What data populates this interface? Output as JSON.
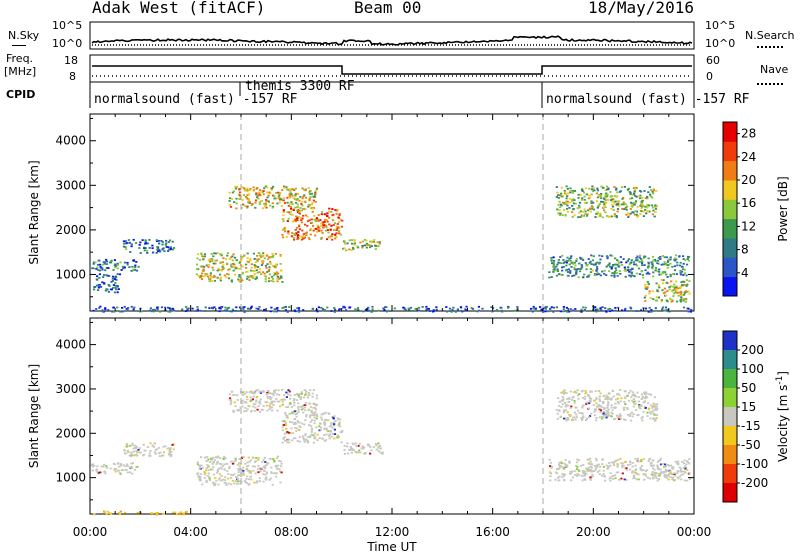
{
  "header": {
    "title": "Adak West (fitACF)",
    "beam": "Beam 00",
    "date": "18/May/2016"
  },
  "panels": {
    "nsky": {
      "label": "N.Sky",
      "ticks": [
        "10^5",
        "10^0"
      ],
      "right_label": "N.Search",
      "right_ticks": [
        "10^5",
        "10^0"
      ]
    },
    "freq": {
      "label_line1": "Freq.",
      "label_line2": "[MHz]",
      "ticks": [
        "18",
        "8"
      ],
      "right_label": "Nave",
      "right_ticks": [
        "60",
        "0"
      ]
    },
    "cpid": {
      "label": "CPID",
      "modes": [
        "normalsound (fast) -157 RF",
        "themis 3300 RF",
        "normalsound (fast) -157 RF"
      ]
    }
  },
  "chart_data": [
    {
      "type": "heatmap",
      "name": "power",
      "ylabel": "Slant Range [km]",
      "yticks": [
        "1000",
        "2000",
        "3000",
        "4000"
      ],
      "ylim": [
        180,
        4600
      ],
      "xlim": [
        0,
        24
      ],
      "colorbar": {
        "label": "Power [dB]",
        "ticks": [
          "4",
          "8",
          "12",
          "16",
          "20",
          "24",
          "28"
        ],
        "range": [
          0,
          30
        ],
        "colors": [
          "#0a14f0",
          "#2a56c8",
          "#2f7a84",
          "#3c9a4c",
          "#8cc83c",
          "#f0c81e",
          "#f07d14",
          "#f03c0a",
          "#e60000"
        ]
      },
      "mode_change_times": [
        6,
        18
      ],
      "echo_regions": [
        {
          "t": [
            0.0,
            1.9
          ],
          "range": [
            1100,
            1350
          ],
          "power": 8
        },
        {
          "t": [
            0.1,
            1.2
          ],
          "range": [
            600,
            1050
          ],
          "power": 6
        },
        {
          "t": [
            1.3,
            3.3
          ],
          "range": [
            1500,
            1800
          ],
          "power": 7
        },
        {
          "t": [
            4.2,
            7.6
          ],
          "range": [
            850,
            1500
          ],
          "power": 16
        },
        {
          "t": [
            5.5,
            9.0
          ],
          "range": [
            2500,
            3000
          ],
          "power": 18
        },
        {
          "t": [
            7.6,
            10.0
          ],
          "range": [
            1800,
            2500
          ],
          "power": 22
        },
        {
          "t": [
            10.0,
            11.6
          ],
          "range": [
            1550,
            1800
          ],
          "power": 15
        },
        {
          "t": [
            18.5,
            22.5
          ],
          "range": [
            2300,
            3000
          ],
          "power": 14
        },
        {
          "t": [
            18.2,
            23.8
          ],
          "range": [
            950,
            1450
          ],
          "power": 10
        },
        {
          "t": [
            22.0,
            23.8
          ],
          "range": [
            400,
            900
          ],
          "power": 16
        },
        {
          "t": [
            0.0,
            24.0
          ],
          "range": [
            180,
            300
          ],
          "power": 6
        }
      ]
    },
    {
      "type": "heatmap",
      "name": "velocity",
      "ylabel": "Slant Range [km]",
      "yticks": [
        "1000",
        "2000",
        "3000",
        "4000"
      ],
      "ylim": [
        180,
        4600
      ],
      "xlim": [
        0,
        24
      ],
      "xticks": [
        "00:00",
        "04:00",
        "08:00",
        "12:00",
        "16:00",
        "20:00",
        "00:00"
      ],
      "xlabel": "Time UT",
      "colorbar": {
        "label": "Velocity [m s",
        "label_sup": "-1",
        "label_end": "]",
        "ticks": [
          "200",
          "100",
          "50",
          "15",
          "-15",
          "-50",
          "-100",
          "-200"
        ],
        "colors": [
          "#1e32c8",
          "#2d8c8c",
          "#4ab43c",
          "#8cd232",
          "#c8c8c0",
          "#f0c81e",
          "#f08c14",
          "#f03c0a",
          "#dc0000"
        ]
      },
      "mode_change_times": [
        6,
        18
      ],
      "echo_regions": [
        {
          "t": [
            0.0,
            1.9
          ],
          "range": [
            1100,
            1350
          ],
          "v": 0
        },
        {
          "t": [
            1.3,
            3.3
          ],
          "range": [
            1500,
            1800
          ],
          "v": 0
        },
        {
          "t": [
            4.2,
            7.6
          ],
          "range": [
            850,
            1500
          ],
          "v": 0
        },
        {
          "t": [
            5.5,
            9.0
          ],
          "range": [
            2500,
            3000
          ],
          "v": 0
        },
        {
          "t": [
            7.6,
            10.0
          ],
          "range": [
            1800,
            2500
          ],
          "v": 0
        },
        {
          "t": [
            10.0,
            11.6
          ],
          "range": [
            1550,
            1800
          ],
          "v": 0
        },
        {
          "t": [
            18.5,
            22.5
          ],
          "range": [
            2300,
            3000
          ],
          "v": 0
        },
        {
          "t": [
            18.2,
            23.8
          ],
          "range": [
            950,
            1450
          ],
          "v": 0
        },
        {
          "t": [
            0.0,
            4.0
          ],
          "range": [
            180,
            260
          ],
          "v": -80
        }
      ]
    }
  ]
}
